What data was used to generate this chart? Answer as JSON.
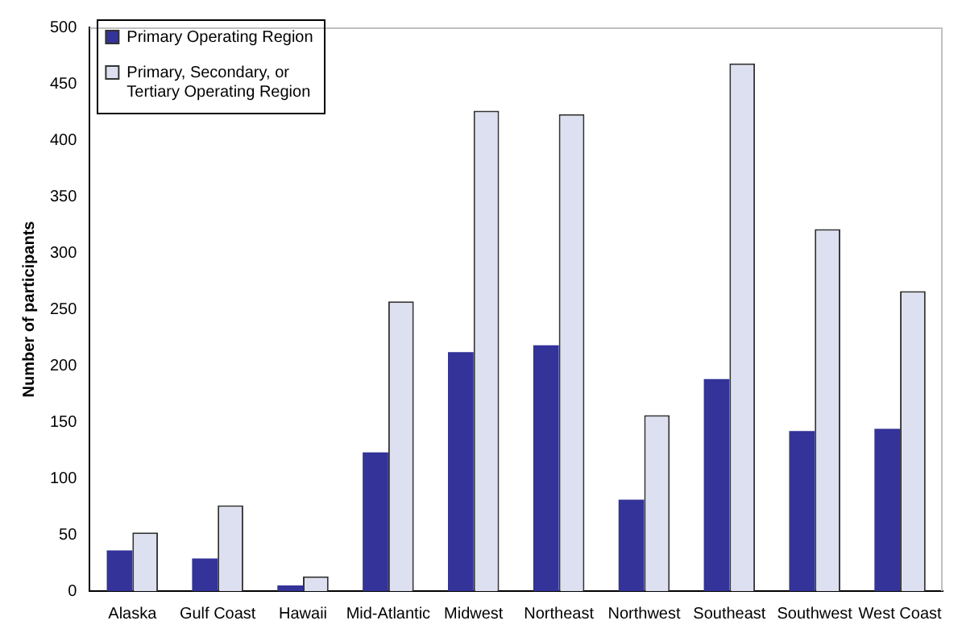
{
  "chart_data": {
    "type": "bar",
    "ylabel": "Number of participants",
    "categories": [
      "Alaska",
      "Gulf Coast",
      "Hawaii",
      "Mid-Atlantic",
      "Midwest",
      "Northeast",
      "Northwest",
      "Southeast",
      "Southwest",
      "West Coast"
    ],
    "series": [
      {
        "name": "Primary Operating Region",
        "color": "#333399",
        "values": [
          36,
          29,
          5,
          123,
          212,
          218,
          81,
          188,
          142,
          144
        ]
      },
      {
        "name": "Primary, Secondary, or Tertiary Operating Region",
        "color": "#dde0f0",
        "values": [
          52,
          76,
          13,
          257,
          426,
          423,
          156,
          468,
          321,
          266
        ]
      }
    ],
    "ylim": [
      0,
      500
    ],
    "yticks": [
      0,
      50,
      100,
      150,
      200,
      250,
      300,
      350,
      400,
      450,
      500
    ],
    "grid": false,
    "legend": "top left"
  }
}
